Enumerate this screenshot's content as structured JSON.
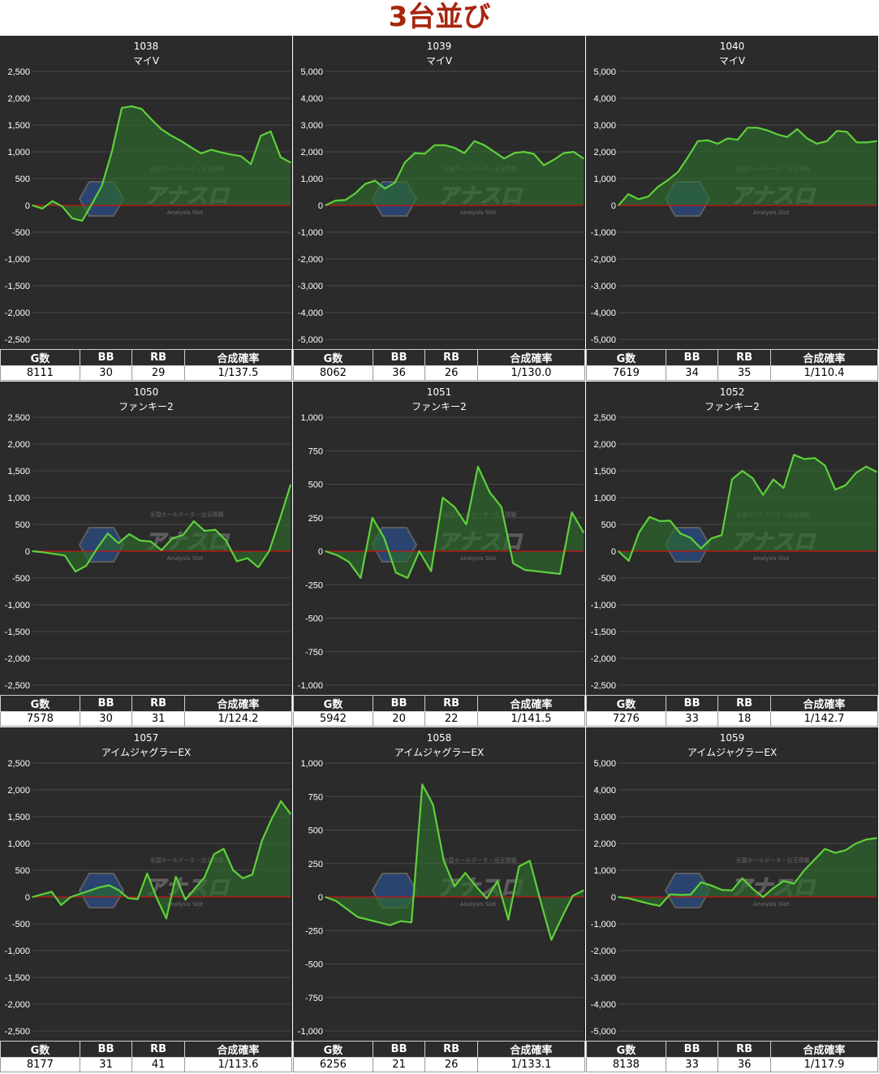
{
  "title": "3台並び",
  "table_headers": [
    "G数",
    "BB",
    "RB",
    "合成確率"
  ],
  "watermark": {
    "brand": "アナスロ",
    "tagline": "全国ホールデータ・出玉情報",
    "sub": "Analysis Slot"
  },
  "colors": {
    "title": "#a8260e",
    "panel_bg": "#2b2b2b",
    "line": "#5ed13a",
    "zero_line": "#cc1111",
    "fill": "#2d6b2d"
  },
  "panels": [
    {
      "machine_no": "1038",
      "machine_name": "マイV",
      "stats": {
        "games": "8111",
        "bb": "30",
        "rb": "29",
        "prob": "1/137.5"
      }
    },
    {
      "machine_no": "1039",
      "machine_name": "マイV",
      "stats": {
        "games": "8062",
        "bb": "36",
        "rb": "26",
        "prob": "1/130.0"
      }
    },
    {
      "machine_no": "1040",
      "machine_name": "マイV",
      "stats": {
        "games": "7619",
        "bb": "34",
        "rb": "35",
        "prob": "1/110.4"
      }
    },
    {
      "machine_no": "1050",
      "machine_name": "ファンキー2",
      "stats": {
        "games": "7578",
        "bb": "30",
        "rb": "31",
        "prob": "1/124.2"
      }
    },
    {
      "machine_no": "1051",
      "machine_name": "ファンキー2",
      "stats": {
        "games": "5942",
        "bb": "20",
        "rb": "22",
        "prob": "1/141.5"
      }
    },
    {
      "machine_no": "1052",
      "machine_name": "ファンキー2",
      "stats": {
        "games": "7276",
        "bb": "33",
        "rb": "18",
        "prob": "1/142.7"
      }
    },
    {
      "machine_no": "1057",
      "machine_name": "アイムジャグラーEX",
      "stats": {
        "games": "8177",
        "bb": "31",
        "rb": "41",
        "prob": "1/113.6"
      }
    },
    {
      "machine_no": "1058",
      "machine_name": "アイムジャグラーEX",
      "stats": {
        "games": "6256",
        "bb": "21",
        "rb": "26",
        "prob": "1/133.1"
      }
    },
    {
      "machine_no": "1059",
      "machine_name": "アイムジャグラーEX",
      "stats": {
        "games": "8138",
        "bb": "33",
        "rb": "36",
        "prob": "1/117.9"
      }
    }
  ],
  "chart_data": [
    {
      "type": "area",
      "title": "1038",
      "subtitle": "マイV",
      "ylim": [
        -2500,
        2500
      ],
      "yticks": [
        "2,500",
        "2,000",
        "1,500",
        "1,000",
        "500",
        "0",
        "-500",
        "-1,000",
        "-1,500",
        "-2,000",
        "-2,500"
      ],
      "values": [
        0,
        -60,
        80,
        -20,
        -240,
        -290,
        30,
        370,
        1000,
        1820,
        1850,
        1800,
        1600,
        1420,
        1300,
        1200,
        1080,
        970,
        1040,
        990,
        950,
        920,
        770,
        1300,
        1380,
        900,
        800
      ]
    },
    {
      "type": "area",
      "title": "1039",
      "subtitle": "マイV",
      "ylim": [
        -5000,
        5000
      ],
      "yticks": [
        "5,000",
        "4,000",
        "3,000",
        "2,000",
        "1,000",
        "0",
        "-1,000",
        "-2,000",
        "-3,000",
        "-4,000",
        "-5,000"
      ],
      "values": [
        0,
        180,
        200,
        450,
        800,
        920,
        630,
        850,
        1600,
        1950,
        1930,
        2250,
        2250,
        2150,
        1950,
        2400,
        2250,
        2000,
        1750,
        1950,
        2000,
        1920,
        1500,
        1700,
        1950,
        2000,
        1750
      ]
    },
    {
      "type": "area",
      "title": "1040",
      "subtitle": "マイV",
      "ylim": [
        -5000,
        5000
      ],
      "yticks": [
        "5,000",
        "4,000",
        "3,000",
        "2,000",
        "1,000",
        "0",
        "-1,000",
        "-2,000",
        "-3,000",
        "-4,000",
        "-5,000"
      ],
      "values": [
        0,
        420,
        230,
        330,
        700,
        950,
        1250,
        1800,
        2400,
        2430,
        2300,
        2500,
        2450,
        2900,
        2900,
        2800,
        2650,
        2550,
        2850,
        2500,
        2300,
        2400,
        2780,
        2750,
        2350,
        2350,
        2400
      ]
    },
    {
      "type": "area",
      "title": "1050",
      "subtitle": "ファンキー2",
      "ylim": [
        -2500,
        2500
      ],
      "yticks": [
        "2,500",
        "2,000",
        "1,500",
        "1,000",
        "500",
        "0",
        "-500",
        "-1,000",
        "-1,500",
        "-2,000",
        "-2,500"
      ],
      "values": [
        0,
        -20,
        -50,
        -80,
        -380,
        -270,
        50,
        330,
        150,
        320,
        200,
        180,
        20,
        240,
        300,
        560,
        380,
        400,
        200,
        -190,
        -130,
        -300,
        0,
        600,
        1240
      ]
    },
    {
      "type": "area",
      "title": "1051",
      "subtitle": "ファンキー2",
      "ylim": [
        -1000,
        1000
      ],
      "yticks": [
        "1,000",
        "750",
        "500",
        "250",
        "0",
        "-250",
        "-500",
        "-750",
        "-1,000"
      ],
      "values": [
        0,
        -30,
        -80,
        -200,
        250,
        100,
        -160,
        -200,
        0,
        -150,
        400,
        330,
        200,
        630,
        440,
        330,
        -90,
        -140,
        -150,
        -160,
        -170,
        290,
        140
      ]
    },
    {
      "type": "area",
      "title": "1052",
      "subtitle": "ファンキー2",
      "ylim": [
        -2500,
        2500
      ],
      "yticks": [
        "2,500",
        "2,000",
        "1,500",
        "1,000",
        "500",
        "0",
        "-500",
        "-1,000",
        "-1,500",
        "-2,000",
        "-2,500"
      ],
      "values": [
        0,
        -180,
        350,
        640,
        560,
        570,
        330,
        250,
        50,
        240,
        300,
        1340,
        1500,
        1360,
        1050,
        1340,
        1180,
        1800,
        1720,
        1740,
        1600,
        1150,
        1230,
        1460,
        1580,
        1480
      ]
    },
    {
      "type": "area",
      "title": "1057",
      "subtitle": "アイムジャグラーEX",
      "ylim": [
        -2500,
        2500
      ],
      "yticks": [
        "2,500",
        "2,000",
        "1,500",
        "1,000",
        "500",
        "0",
        "-500",
        "-1,000",
        "-1,500",
        "-2,000",
        "-2,500"
      ],
      "values": [
        0,
        50,
        100,
        -150,
        0,
        60,
        120,
        180,
        220,
        130,
        -20,
        -40,
        440,
        -20,
        -400,
        380,
        -50,
        160,
        370,
        800,
        900,
        500,
        350,
        420,
        1050,
        1450,
        1790,
        1550
      ]
    },
    {
      "type": "area",
      "title": "1058",
      "subtitle": "アイムジャグラーEX",
      "ylim": [
        -1000,
        1000
      ],
      "yticks": [
        "1,000",
        "750",
        "500",
        "250",
        "0",
        "-250",
        "-500",
        "-750",
        "-1,000"
      ],
      "values": [
        0,
        -30,
        -90,
        -150,
        -170,
        -190,
        -210,
        -180,
        -190,
        840,
        690,
        270,
        80,
        180,
        80,
        -10,
        120,
        -170,
        230,
        270,
        -30,
        -320,
        -150,
        10,
        50
      ]
    },
    {
      "type": "area",
      "title": "1059",
      "subtitle": "アイムジャグラーEX",
      "ylim": [
        -5000,
        5000
      ],
      "yticks": [
        "5,000",
        "4,000",
        "3,000",
        "2,000",
        "1,000",
        "0",
        "-1,000",
        "-2,000",
        "-3,000",
        "-4,000",
        "-5,000"
      ],
      "values": [
        0,
        -50,
        -150,
        -250,
        -330,
        100,
        80,
        90,
        550,
        430,
        270,
        250,
        700,
        310,
        0,
        330,
        600,
        500,
        1000,
        1400,
        1800,
        1650,
        1750,
        2000,
        2150,
        2200
      ]
    }
  ]
}
